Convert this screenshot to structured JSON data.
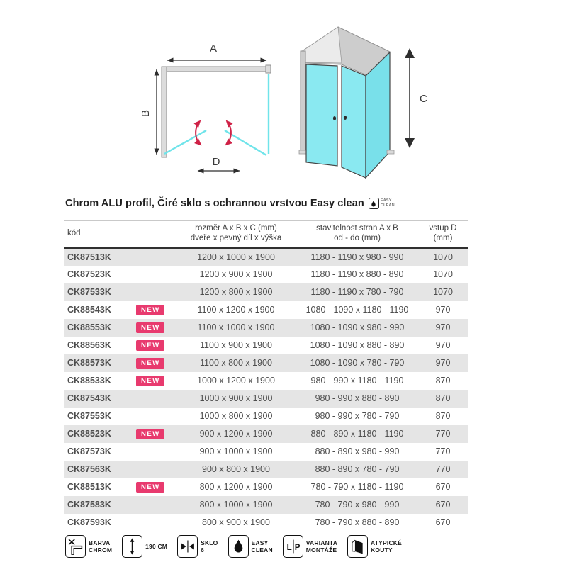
{
  "title": "Chrom ALU profil, Čiré sklo s ochrannou vrstvou Easy clean",
  "title_badge": {
    "line1": "EASY",
    "line2": "CLEAN"
  },
  "diagrams": {
    "plan": {
      "width_label": "A",
      "depth_label": "B",
      "entry_label": "D"
    },
    "perspective": {
      "height_label": "C"
    }
  },
  "table": {
    "headers": {
      "kod": "kód",
      "rozmer_line1": "rozměr A x B x C (mm)",
      "rozmer_line2": "dveře x pevný díl x výška",
      "stavitelnost_line1": "stavitelnost stran A x B",
      "stavitelnost_line2": "od - do (mm)",
      "vstup": "vstup D (mm)"
    },
    "new_badge_label": "NEW",
    "rows": [
      {
        "kod": "CK87513K",
        "new": false,
        "rozmer": "1200 x 1000 x 1900",
        "stavitelnost": "1180 - 1190 x 980 - 990",
        "vstup": "1070"
      },
      {
        "kod": "CK87523K",
        "new": false,
        "rozmer": "1200 x 900 x 1900",
        "stavitelnost": "1180 - 1190 x 880 - 890",
        "vstup": "1070"
      },
      {
        "kod": "CK87533K",
        "new": false,
        "rozmer": "1200 x 800 x 1900",
        "stavitelnost": "1180 - 1190 x 780 - 790",
        "vstup": "1070"
      },
      {
        "kod": "CK88543K",
        "new": true,
        "rozmer": "1100 x 1200 x 1900",
        "stavitelnost": "1080 - 1090 x 1180 - 1190",
        "vstup": "970"
      },
      {
        "kod": "CK88553K",
        "new": true,
        "rozmer": "1100 x 1000 x 1900",
        "stavitelnost": "1080 - 1090 x 980 - 990",
        "vstup": "970"
      },
      {
        "kod": "CK88563K",
        "new": true,
        "rozmer": "1100 x 900 x 1900",
        "stavitelnost": "1080 - 1090 x 880 - 890",
        "vstup": "970"
      },
      {
        "kod": "CK88573K",
        "new": true,
        "rozmer": "1100 x 800 x 1900",
        "stavitelnost": "1080 - 1090 x 780 - 790",
        "vstup": "970"
      },
      {
        "kod": "CK88533K",
        "new": true,
        "rozmer": "1000 x 1200 x 1900",
        "stavitelnost": "980 - 990 x 1180 - 1190",
        "vstup": "870"
      },
      {
        "kod": "CK87543K",
        "new": false,
        "rozmer": "1000 x 900 x 1900",
        "stavitelnost": "980 - 990 x 880 - 890",
        "vstup": "870"
      },
      {
        "kod": "CK87553K",
        "new": false,
        "rozmer": "1000 x 800 x 1900",
        "stavitelnost": "980 - 990 x 780 - 790",
        "vstup": "870"
      },
      {
        "kod": "CK88523K",
        "new": true,
        "rozmer": "900 x 1200 x 1900",
        "stavitelnost": "880 - 890 x 1180 - 1190",
        "vstup": "770"
      },
      {
        "kod": "CK87573K",
        "new": false,
        "rozmer": "900 x 1000 x 1900",
        "stavitelnost": "880 - 890 x 980 - 990",
        "vstup": "770"
      },
      {
        "kod": "CK87563K",
        "new": false,
        "rozmer": "900 x 800 x 1900",
        "stavitelnost": "880 - 890 x 780 - 790",
        "vstup": "770"
      },
      {
        "kod": "CK88513K",
        "new": true,
        "rozmer": "800 x 1200 x 1900",
        "stavitelnost": "780 - 790 x 1180 - 1190",
        "vstup": "670"
      },
      {
        "kod": "CK87583K",
        "new": false,
        "rozmer": "800 x 1000 x 1900",
        "stavitelnost": "780 - 790 x 980 - 990",
        "vstup": "670"
      },
      {
        "kod": "CK87593K",
        "new": false,
        "rozmer": "800 x 900 x 1900",
        "stavitelnost": "780 - 790 x 880 - 890",
        "vstup": "670"
      }
    ]
  },
  "legend": [
    {
      "icon": "chrome-profile-icon",
      "line1": "BARVA",
      "line2": "CHROM"
    },
    {
      "icon": "height-arrow-icon",
      "line1": "190 CM",
      "line2": ""
    },
    {
      "icon": "glass-thickness-icon",
      "line1": "SKLO",
      "line2": "6"
    },
    {
      "icon": "droplet-icon",
      "line1": "EASY",
      "line2": "CLEAN"
    },
    {
      "icon": "lp-variant-icon",
      "line1": "VARIANTA",
      "line2": "MONTÁŽE",
      "icon_text_left": "L",
      "icon_text_right": "P"
    },
    {
      "icon": "atypical-corner-icon",
      "line1": "ATYPICKÉ",
      "line2": "KOUTY"
    }
  ],
  "colors": {
    "accent_pink": "#e83a6e",
    "glass_cyan": "#8ae9f1",
    "row_stripe": "#e5e5e5",
    "wall_gray": "#d6d6d6"
  }
}
